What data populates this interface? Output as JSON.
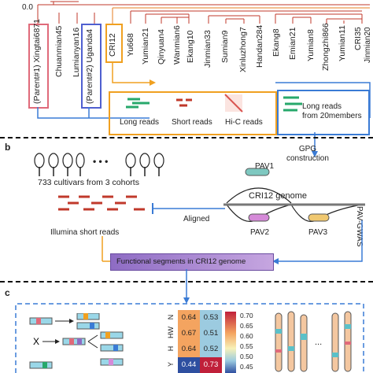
{
  "tree": {
    "axis_label": "0.0",
    "parents": [
      {
        "name": "Xingtai6871",
        "tag": "(Parent#1)",
        "color": "#e06a7a"
      },
      {
        "name": "Uganda4",
        "tag": "(Parent#2)",
        "color": "#4f5fd0"
      }
    ],
    "cultivars": [
      "Chuanmian45",
      "Lumianyan16",
      "CRI12",
      "Yu668",
      "Yumian21",
      "Qinyuan4",
      "Wanmian6",
      "Ekang10",
      "Jinmian33",
      "Sumian9",
      "Xinluzhong7",
      "Handan284",
      "Ekang8",
      "Emian21",
      "Yumian8",
      "Zhongzhi866",
      "Yumian11",
      "CRI35",
      "Jinmian20"
    ],
    "highlight": "CRI12",
    "highlight_color": "#f0a020"
  },
  "panel_a": {
    "legend": [
      "Long reads",
      "Short reads",
      "Hi-C reads"
    ],
    "long_reads_members": "Long reads\nfrom 20members"
  },
  "panel_b": {
    "label": "b",
    "dots": "• • •",
    "cultivars_caption": "733 cultivars from 3 cohorts",
    "illumina_caption": "Illumina short reads",
    "aligned": "Aligned",
    "gpg": "GPG\nconstruction",
    "genome": "CRI12 genome",
    "pav1": "PAV1",
    "pav2": "PAV2",
    "pav3": "PAV3",
    "pav_gwas": "PAV-GWAS",
    "functional": "Functional segments in CRI12 genome"
  },
  "panel_c": {
    "label": "c",
    "heatmap_rows": [
      "N",
      "HW",
      "H",
      "Y"
    ],
    "heatmap_values": [
      [
        "0.64",
        "0.53"
      ],
      [
        "0.67",
        "0.51"
      ],
      [
        "0.64",
        "0.52"
      ],
      [
        "0.44",
        "0.73"
      ]
    ],
    "colorbar_ticks": [
      "0.70",
      "0.65",
      "0.60",
      "0.55",
      "0.50",
      "0.45"
    ]
  }
}
